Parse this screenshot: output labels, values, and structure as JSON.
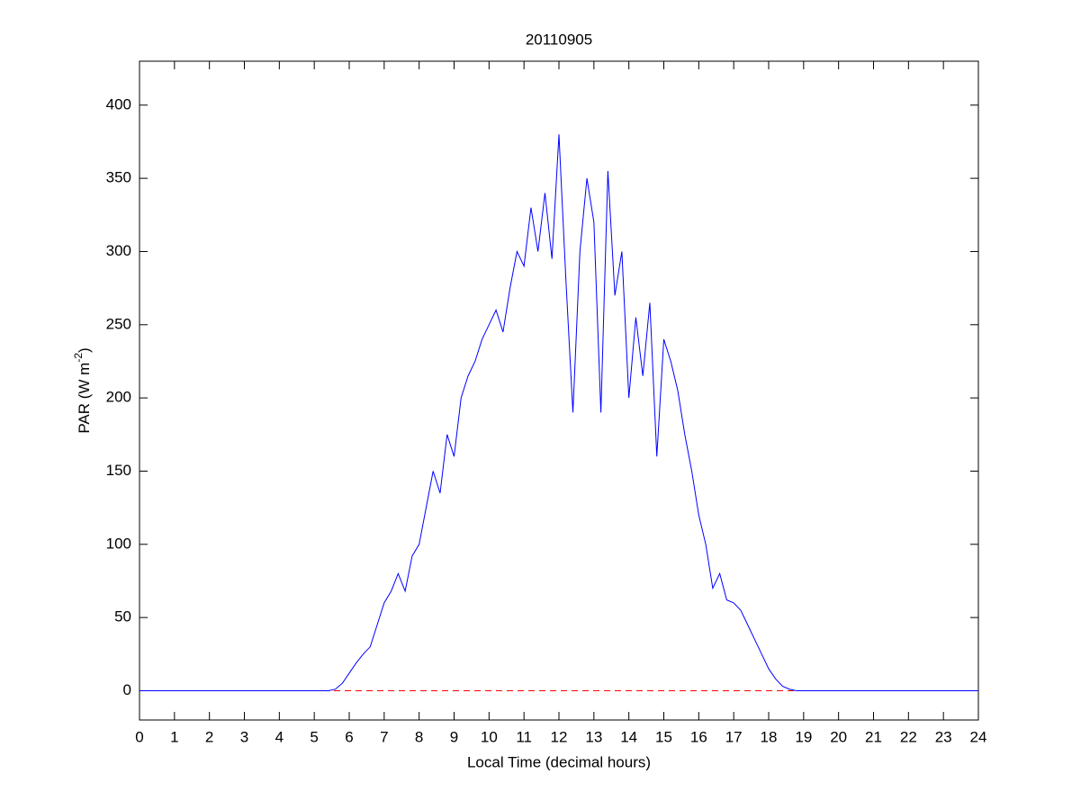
{
  "chart_data": {
    "type": "line",
    "title": "20110905",
    "xlabel": "Local Time (decimal hours)",
    "ylabel": {
      "text": "PAR (W m",
      "superscript": "-2",
      "suffix": ")"
    },
    "x": [
      0,
      5.4,
      5.6,
      5.8,
      6.0,
      6.2,
      6.4,
      6.6,
      6.8,
      7.0,
      7.2,
      7.4,
      7.6,
      7.8,
      8.0,
      8.2,
      8.4,
      8.6,
      8.8,
      9.0,
      9.2,
      9.4,
      9.6,
      9.8,
      10.0,
      10.2,
      10.4,
      10.6,
      10.8,
      11.0,
      11.2,
      11.4,
      11.6,
      11.8,
      12.0,
      12.2,
      12.4,
      12.6,
      12.8,
      13.0,
      13.2,
      13.4,
      13.6,
      13.8,
      14.0,
      14.2,
      14.4,
      14.6,
      14.8,
      15.0,
      15.2,
      15.4,
      15.6,
      15.8,
      16.0,
      16.2,
      16.4,
      16.6,
      16.8,
      17.0,
      17.2,
      17.4,
      17.6,
      17.8,
      18.0,
      18.2,
      18.4,
      18.6,
      18.8,
      24
    ],
    "series": [
      {
        "color": "#0000ff",
        "values": [
          0,
          0,
          1,
          5,
          12,
          19,
          25,
          30,
          45,
          60,
          68,
          80,
          68,
          92,
          100,
          125,
          150,
          135,
          175,
          160,
          200,
          215,
          225,
          240,
          250,
          260,
          245,
          275,
          300,
          290,
          330,
          300,
          340,
          295,
          380,
          280,
          190,
          300,
          350,
          320,
          190,
          355,
          270,
          300,
          200,
          255,
          215,
          265,
          160,
          240,
          225,
          205,
          175,
          150,
          120,
          100,
          70,
          80,
          62,
          60,
          55,
          45,
          35,
          25,
          15,
          8,
          3,
          1,
          0,
          0
        ]
      }
    ],
    "reference_line": {
      "y": 0,
      "color": "#ff0000",
      "style": "dashed"
    },
    "xlim": [
      0,
      24
    ],
    "ylim": [
      -20,
      430
    ],
    "xticks": [
      0,
      1,
      2,
      3,
      4,
      5,
      6,
      7,
      8,
      9,
      10,
      11,
      12,
      13,
      14,
      15,
      16,
      17,
      18,
      19,
      20,
      21,
      22,
      23,
      24
    ],
    "yticks": [
      0,
      50,
      100,
      150,
      200,
      250,
      300,
      350,
      400
    ],
    "grid": false
  }
}
